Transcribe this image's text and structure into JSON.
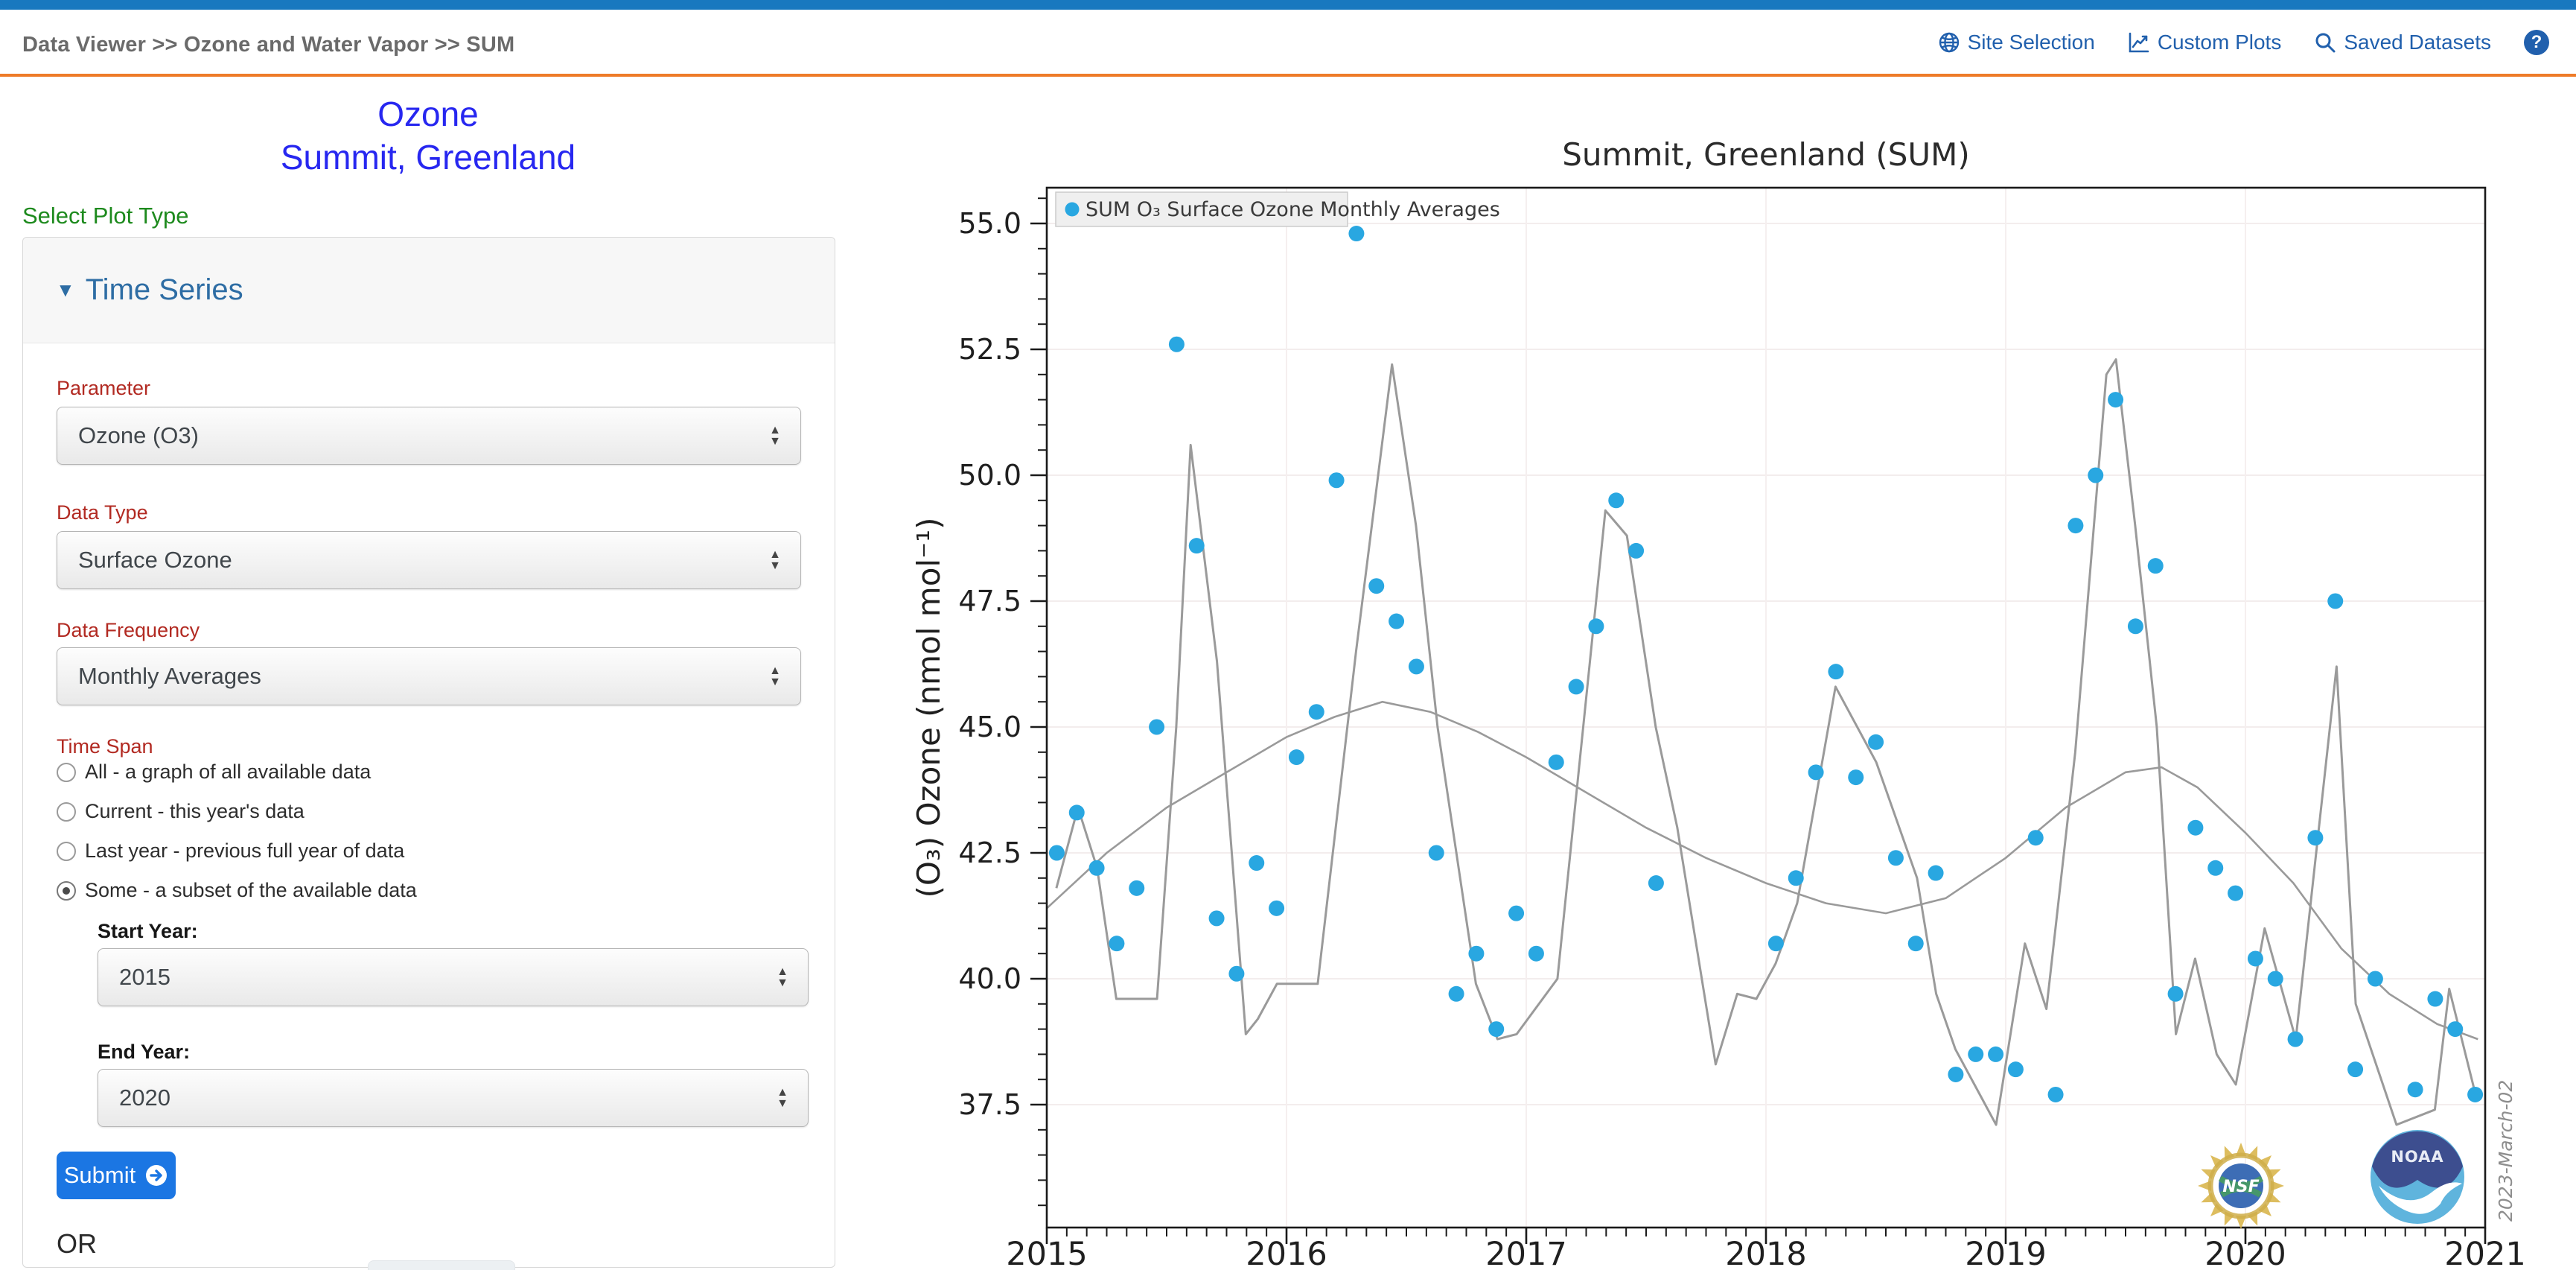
{
  "header": {
    "breadcrumb": "Data Viewer >> Ozone and Water Vapor >> SUM",
    "nav": [
      {
        "label": "Site Selection",
        "icon": "globe-icon"
      },
      {
        "label": "Custom Plots",
        "icon": "chart-icon"
      },
      {
        "label": "Saved Datasets",
        "icon": "search-icon"
      }
    ],
    "help_label": "?"
  },
  "sidebar": {
    "title_line1": "Ozone",
    "title_line2": "Summit, Greenland",
    "section_label": "Select Plot Type",
    "panel_header": "Time Series",
    "collapse_icon": "▼",
    "fields": [
      {
        "label": "Parameter",
        "value": "Ozone (O3)"
      },
      {
        "label": "Data Type",
        "value": "Surface Ozone"
      },
      {
        "label": "Data Frequency",
        "value": "Monthly Averages"
      }
    ],
    "time_span": {
      "label": "Time Span",
      "options": [
        {
          "label": "All - a graph of all available data",
          "selected": false
        },
        {
          "label": "Current - this year's data",
          "selected": false
        },
        {
          "label": "Last year - previous full year of data",
          "selected": false
        },
        {
          "label": "Some - a subset of the available data",
          "selected": true
        }
      ]
    },
    "start_year": {
      "label": "Start Year:",
      "value": "2015"
    },
    "end_year": {
      "label": "End Year:",
      "value": "2020"
    },
    "submit_label": "Submit",
    "or_label": "OR"
  },
  "chart_data": {
    "type": "scatter",
    "title": "Summit, Greenland (SUM)",
    "ylabel": "(O₃) Ozone (nmol mol⁻¹)",
    "legend": {
      "label": "SUM O₃ Surface Ozone Monthly Averages",
      "position": "upper-left"
    },
    "yticks": [
      37.5,
      40.0,
      42.5,
      45.0,
      47.5,
      50.0,
      52.5,
      55.0
    ],
    "ylim": [
      35.0,
      55.7
    ],
    "xticks": [
      2015,
      2016,
      2017,
      2018,
      2019,
      2020,
      2021
    ],
    "xlim": [
      2015,
      2021
    ],
    "grid": true,
    "date_note": "2023-March-02",
    "logos": [
      "nsf-logo",
      "noaa-logo"
    ],
    "colors": {
      "point": "#29a7e1",
      "fit_line": "#9a9a9a",
      "trend_line": "#9a9a9a",
      "legend_bg": "#efefef"
    },
    "series": [
      {
        "name": "SUM O₃ Surface Ozone Monthly Averages",
        "monthly_values": {
          "2015": [
            42.5,
            43.3,
            42.2,
            40.7,
            41.8,
            45.0,
            52.6,
            48.6,
            41.2,
            40.1,
            42.3,
            41.4
          ],
          "2016": [
            44.4,
            45.3,
            49.9,
            54.8,
            47.8,
            47.1,
            46.2,
            42.5,
            39.7,
            40.5,
            39.0,
            41.3
          ],
          "2017": [
            40.5,
            44.3,
            45.8,
            47.0,
            49.5,
            48.5,
            41.9,
            null,
            null,
            null,
            null,
            null
          ],
          "2018": [
            40.7,
            42.0,
            44.1,
            46.1,
            44.0,
            44.7,
            42.4,
            40.7,
            42.1,
            38.1,
            38.5,
            38.5
          ],
          "2019": [
            38.2,
            42.8,
            37.7,
            49.0,
            50.0,
            51.5,
            47.0,
            48.2,
            39.7,
            43.0,
            42.2,
            41.7
          ],
          "2020": [
            40.4,
            40.0,
            38.8,
            42.8,
            47.5,
            38.2,
            40.0,
            null,
            37.8,
            39.6,
            39.0,
            37.7
          ]
        }
      }
    ],
    "fit_line_points": [
      [
        2015.04,
        41.8
      ],
      [
        2015.13,
        43.4
      ],
      [
        2015.21,
        42.2
      ],
      [
        2015.29,
        39.6
      ],
      [
        2015.46,
        39.6
      ],
      [
        2015.54,
        45.0
      ],
      [
        2015.6,
        50.6
      ],
      [
        2015.71,
        46.3
      ],
      [
        2015.83,
        38.9
      ],
      [
        2015.88,
        39.2
      ],
      [
        2015.96,
        39.9
      ],
      [
        2016.13,
        39.9
      ],
      [
        2016.29,
        46.5
      ],
      [
        2016.44,
        52.2
      ],
      [
        2016.54,
        49.0
      ],
      [
        2016.63,
        45.0
      ],
      [
        2016.79,
        39.9
      ],
      [
        2016.88,
        38.8
      ],
      [
        2016.96,
        38.9
      ],
      [
        2017.13,
        40.0
      ],
      [
        2017.33,
        49.3
      ],
      [
        2017.42,
        48.8
      ],
      [
        2017.54,
        45.0
      ],
      [
        2017.63,
        43.0
      ],
      [
        2017.79,
        38.3
      ],
      [
        2017.88,
        39.7
      ],
      [
        2017.96,
        39.6
      ],
      [
        2018.04,
        40.3
      ],
      [
        2018.13,
        41.5
      ],
      [
        2018.29,
        45.8
      ],
      [
        2018.46,
        44.3
      ],
      [
        2018.63,
        42.0
      ],
      [
        2018.71,
        39.7
      ],
      [
        2018.79,
        38.6
      ],
      [
        2018.96,
        37.1
      ],
      [
        2019.08,
        40.7
      ],
      [
        2019.17,
        39.4
      ],
      [
        2019.29,
        44.5
      ],
      [
        2019.42,
        52.0
      ],
      [
        2019.46,
        52.3
      ],
      [
        2019.54,
        49.0
      ],
      [
        2019.63,
        45.0
      ],
      [
        2019.71,
        38.9
      ],
      [
        2019.79,
        40.4
      ],
      [
        2019.88,
        38.5
      ],
      [
        2019.96,
        37.9
      ],
      [
        2020.08,
        41.0
      ],
      [
        2020.21,
        38.8
      ],
      [
        2020.38,
        46.2
      ],
      [
        2020.46,
        39.5
      ],
      [
        2020.63,
        37.1
      ],
      [
        2020.79,
        37.4
      ],
      [
        2020.85,
        39.8
      ],
      [
        2020.96,
        37.7
      ]
    ],
    "trend_line_points": [
      [
        2015.0,
        41.4
      ],
      [
        2015.25,
        42.5
      ],
      [
        2015.5,
        43.4
      ],
      [
        2015.75,
        44.1
      ],
      [
        2016.0,
        44.8
      ],
      [
        2016.2,
        45.2
      ],
      [
        2016.4,
        45.5
      ],
      [
        2016.6,
        45.3
      ],
      [
        2016.8,
        44.9
      ],
      [
        2017.0,
        44.4
      ],
      [
        2017.25,
        43.7
      ],
      [
        2017.5,
        43.0
      ],
      [
        2017.75,
        42.4
      ],
      [
        2018.0,
        41.9
      ],
      [
        2018.25,
        41.5
      ],
      [
        2018.5,
        41.3
      ],
      [
        2018.75,
        41.6
      ],
      [
        2019.0,
        42.4
      ],
      [
        2019.25,
        43.4
      ],
      [
        2019.5,
        44.1
      ],
      [
        2019.65,
        44.2
      ],
      [
        2019.8,
        43.8
      ],
      [
        2020.0,
        42.9
      ],
      [
        2020.2,
        41.9
      ],
      [
        2020.4,
        40.6
      ],
      [
        2020.6,
        39.7
      ],
      [
        2020.8,
        39.1
      ],
      [
        2020.97,
        38.8
      ]
    ]
  }
}
